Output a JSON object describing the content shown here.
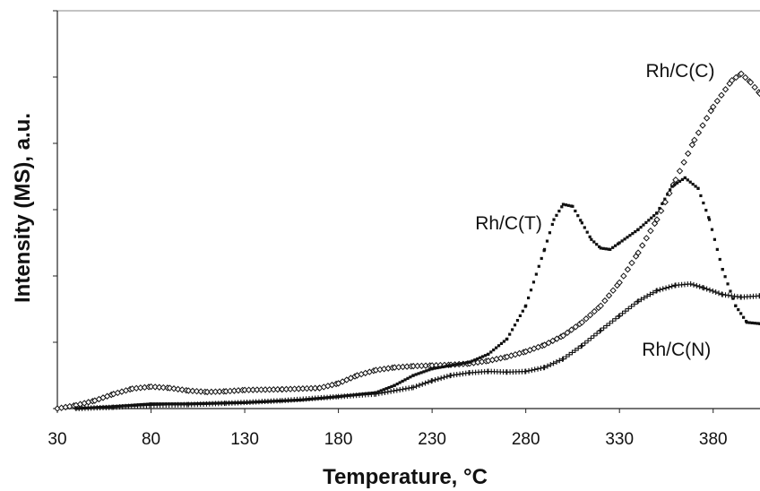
{
  "chart_data": {
    "type": "scatter",
    "xlabel": "Temperature, °C",
    "ylabel": "Intensity (MS), a.u.",
    "xlim": [
      30,
      405
    ],
    "ylim": [
      0,
      6
    ],
    "x_ticks": [
      "30",
      "80",
      "130",
      "180",
      "230",
      "280",
      "330",
      "380"
    ],
    "y_ticks_labeled": false,
    "grid": false,
    "legend": "none",
    "series": [
      {
        "name": "Rh/C(C)",
        "marker": "open-diamond",
        "color": "#111111",
        "points": [
          [
            30,
            0.0
          ],
          [
            40,
            0.05
          ],
          [
            50,
            0.12
          ],
          [
            60,
            0.22
          ],
          [
            70,
            0.3
          ],
          [
            80,
            0.33
          ],
          [
            90,
            0.31
          ],
          [
            100,
            0.27
          ],
          [
            110,
            0.25
          ],
          [
            120,
            0.26
          ],
          [
            130,
            0.28
          ],
          [
            150,
            0.29
          ],
          [
            170,
            0.31
          ],
          [
            180,
            0.38
          ],
          [
            190,
            0.5
          ],
          [
            200,
            0.58
          ],
          [
            210,
            0.62
          ],
          [
            220,
            0.64
          ],
          [
            230,
            0.65
          ],
          [
            240,
            0.66
          ],
          [
            250,
            0.68
          ],
          [
            260,
            0.72
          ],
          [
            270,
            0.78
          ],
          [
            280,
            0.86
          ],
          [
            290,
            0.96
          ],
          [
            300,
            1.1
          ],
          [
            310,
            1.3
          ],
          [
            320,
            1.55
          ],
          [
            330,
            1.9
          ],
          [
            340,
            2.35
          ],
          [
            350,
            2.85
          ],
          [
            360,
            3.45
          ],
          [
            370,
            4.05
          ],
          [
            380,
            4.55
          ],
          [
            390,
            4.95
          ],
          [
            395,
            5.05
          ],
          [
            400,
            4.92
          ],
          [
            405,
            4.75
          ]
        ]
      },
      {
        "name": "Rh/C(T)",
        "marker": "small-square",
        "color": "#111111",
        "points": [
          [
            40,
            0.0
          ],
          [
            60,
            0.03
          ],
          [
            80,
            0.07
          ],
          [
            100,
            0.07
          ],
          [
            130,
            0.09
          ],
          [
            160,
            0.13
          ],
          [
            180,
            0.18
          ],
          [
            200,
            0.24
          ],
          [
            210,
            0.35
          ],
          [
            220,
            0.5
          ],
          [
            230,
            0.6
          ],
          [
            240,
            0.65
          ],
          [
            250,
            0.7
          ],
          [
            260,
            0.82
          ],
          [
            270,
            1.05
          ],
          [
            280,
            1.55
          ],
          [
            290,
            2.4
          ],
          [
            295,
            2.85
          ],
          [
            300,
            3.08
          ],
          [
            305,
            3.05
          ],
          [
            310,
            2.8
          ],
          [
            315,
            2.55
          ],
          [
            320,
            2.42
          ],
          [
            325,
            2.4
          ],
          [
            330,
            2.5
          ],
          [
            340,
            2.7
          ],
          [
            350,
            2.95
          ],
          [
            358,
            3.35
          ],
          [
            365,
            3.48
          ],
          [
            372,
            3.32
          ],
          [
            378,
            2.85
          ],
          [
            385,
            2.1
          ],
          [
            392,
            1.55
          ],
          [
            398,
            1.3
          ],
          [
            405,
            1.28
          ]
        ]
      },
      {
        "name": "Rh/C(N)",
        "marker": "plus",
        "color": "#111111",
        "points": [
          [
            40,
            0.0
          ],
          [
            60,
            0.02
          ],
          [
            80,
            0.05
          ],
          [
            100,
            0.06
          ],
          [
            120,
            0.08
          ],
          [
            150,
            0.12
          ],
          [
            180,
            0.18
          ],
          [
            200,
            0.22
          ],
          [
            220,
            0.32
          ],
          [
            230,
            0.42
          ],
          [
            240,
            0.5
          ],
          [
            250,
            0.54
          ],
          [
            260,
            0.56
          ],
          [
            270,
            0.55
          ],
          [
            280,
            0.56
          ],
          [
            290,
            0.62
          ],
          [
            300,
            0.75
          ],
          [
            310,
            0.95
          ],
          [
            320,
            1.18
          ],
          [
            330,
            1.4
          ],
          [
            340,
            1.62
          ],
          [
            350,
            1.78
          ],
          [
            360,
            1.86
          ],
          [
            368,
            1.88
          ],
          [
            375,
            1.82
          ],
          [
            385,
            1.72
          ],
          [
            395,
            1.68
          ],
          [
            405,
            1.7
          ]
        ]
      }
    ],
    "series_label_positions": {
      "Rh/C(C)": [
        344,
        5.0
      ],
      "Rh/C(T)": [
        253,
        2.7
      ],
      "Rh/C(N)": [
        342,
        0.8
      ]
    }
  }
}
